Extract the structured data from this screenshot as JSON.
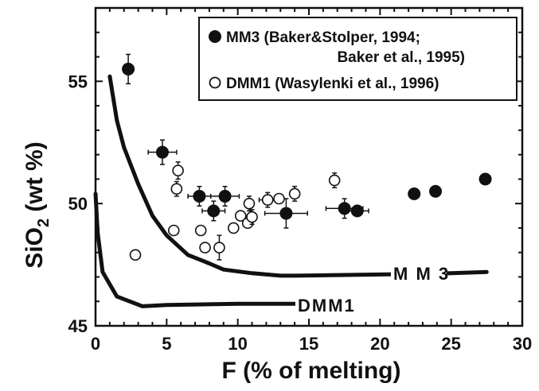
{
  "chart_data": {
    "type": "scatter",
    "title": "",
    "xlabel": "F (% of melting)",
    "ylabel_main": "SiO",
    "ylabel_sub": "2",
    "ylabel_rest": " (wt %)",
    "xlim": [
      0,
      30
    ],
    "ylim": [
      45,
      58
    ],
    "xticks": [
      0,
      5,
      10,
      15,
      20,
      25,
      30
    ],
    "yticks": [
      45,
      50,
      55
    ],
    "legend_position": "top-right",
    "legend": {
      "mm3_line1": "MM3  (Baker&Stolper, 1994;",
      "mm3_line2": "Baker et al., 1995)",
      "dmm1": "DMM1  (Wasylenki et al., 1996)"
    },
    "series": [
      {
        "name": "MM3",
        "marker": "filled-circle",
        "points": [
          {
            "x": 2.3,
            "y": 55.5,
            "xerr": 0,
            "yerr": 0.6
          },
          {
            "x": 4.7,
            "y": 52.1,
            "xerr": 1.0,
            "yerr": 0.5
          },
          {
            "x": 7.3,
            "y": 50.3,
            "xerr": 0.8,
            "yerr": 0.4
          },
          {
            "x": 8.3,
            "y": 49.7,
            "xerr": 0.8,
            "yerr": 0.4
          },
          {
            "x": 9.1,
            "y": 50.3,
            "xerr": 1.0,
            "yerr": 0.4
          },
          {
            "x": 13.4,
            "y": 49.6,
            "xerr": 1.5,
            "yerr": 0.6
          },
          {
            "x": 17.5,
            "y": 49.8,
            "xerr": 1.3,
            "yerr": 0.4
          },
          {
            "x": 18.4,
            "y": 49.7,
            "xerr": 0.8,
            "yerr": 0
          },
          {
            "x": 22.4,
            "y": 50.4,
            "xerr": 0,
            "yerr": 0
          },
          {
            "x": 23.9,
            "y": 50.5,
            "xerr": 0,
            "yerr": 0
          },
          {
            "x": 27.4,
            "y": 51.0,
            "xerr": 0,
            "yerr": 0
          }
        ]
      },
      {
        "name": "DMM1",
        "marker": "open-circle",
        "points": [
          {
            "x": 2.8,
            "y": 47.9,
            "xerr": 0,
            "yerr": 0
          },
          {
            "x": 5.5,
            "y": 48.9,
            "xerr": 0,
            "yerr": 0
          },
          {
            "x": 5.7,
            "y": 50.6,
            "xerr": 0,
            "yerr": 0.3
          },
          {
            "x": 5.8,
            "y": 51.35,
            "xerr": 0,
            "yerr": 0.35
          },
          {
            "x": 7.4,
            "y": 48.9,
            "xerr": 0,
            "yerr": 0
          },
          {
            "x": 7.7,
            "y": 48.2,
            "xerr": 0,
            "yerr": 0
          },
          {
            "x": 8.7,
            "y": 48.2,
            "xerr": 0,
            "yerr": 0.5
          },
          {
            "x": 9.7,
            "y": 49.0,
            "xerr": 0,
            "yerr": 0
          },
          {
            "x": 10.2,
            "y": 49.5,
            "xerr": 0,
            "yerr": 0
          },
          {
            "x": 10.7,
            "y": 49.2,
            "xerr": 0,
            "yerr": 0
          },
          {
            "x": 10.8,
            "y": 50.0,
            "xerr": 0,
            "yerr": 0.3
          },
          {
            "x": 11.0,
            "y": 49.45,
            "xerr": 0,
            "yerr": 0.3
          },
          {
            "x": 12.1,
            "y": 50.15,
            "xerr": 0.6,
            "yerr": 0.3
          },
          {
            "x": 12.9,
            "y": 50.2,
            "xerr": 0,
            "yerr": 0
          },
          {
            "x": 14.0,
            "y": 50.4,
            "xerr": 0,
            "yerr": 0.3
          },
          {
            "x": 16.8,
            "y": 50.95,
            "xerr": 0,
            "yerr": 0.3
          }
        ]
      }
    ],
    "curves": [
      {
        "name": "MM3",
        "label": "M M 3",
        "points": [
          [
            1.0,
            55.2
          ],
          [
            1.5,
            53.4
          ],
          [
            2.0,
            52.3
          ],
          [
            3.0,
            50.8
          ],
          [
            4.0,
            49.5
          ],
          [
            5.0,
            48.7
          ],
          [
            6.5,
            47.9
          ],
          [
            8.0,
            47.55
          ],
          [
            9.0,
            47.3
          ],
          [
            11.0,
            47.15
          ],
          [
            13.0,
            47.05
          ],
          [
            14.0,
            47.05
          ],
          [
            20.0,
            47.1
          ],
          [
            25.0,
            47.15
          ],
          [
            27.5,
            47.2
          ]
        ]
      },
      {
        "name": "DMM1",
        "label": "DMM1",
        "points": [
          [
            0.0,
            50.4
          ],
          [
            0.15,
            48.8
          ],
          [
            0.5,
            47.2
          ],
          [
            1.5,
            46.2
          ],
          [
            3.3,
            45.8
          ],
          [
            5.0,
            45.85
          ],
          [
            10.0,
            45.9
          ],
          [
            14.0,
            45.9
          ]
        ]
      }
    ]
  }
}
